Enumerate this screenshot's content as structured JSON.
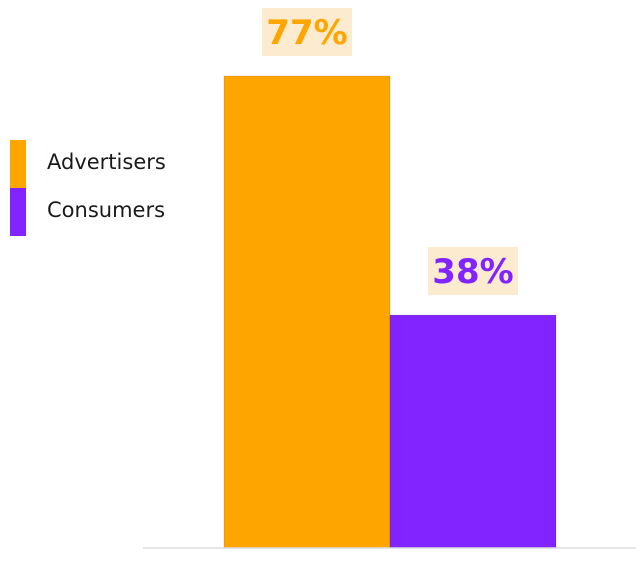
{
  "chart_data": {
    "type": "bar",
    "title": "",
    "xlabel": "",
    "ylabel": "",
    "categories": [
      "Advertisers",
      "Consumers"
    ],
    "values": [
      77,
      38
    ],
    "value_labels": [
      "77%",
      "38%"
    ],
    "unit": "%",
    "ylim": [
      0,
      100
    ],
    "grid": false,
    "legend_position": "left",
    "colors": {
      "Advertisers": "#FFA500",
      "Consumers": "#8224FF",
      "label_background": "#FCEBCF",
      "baseline": "#DDDDDD"
    }
  },
  "legend": [
    {
      "label": "Advertisers",
      "color": "#FFA500"
    },
    {
      "label": "Consumers",
      "color": "#8224FF"
    }
  ]
}
